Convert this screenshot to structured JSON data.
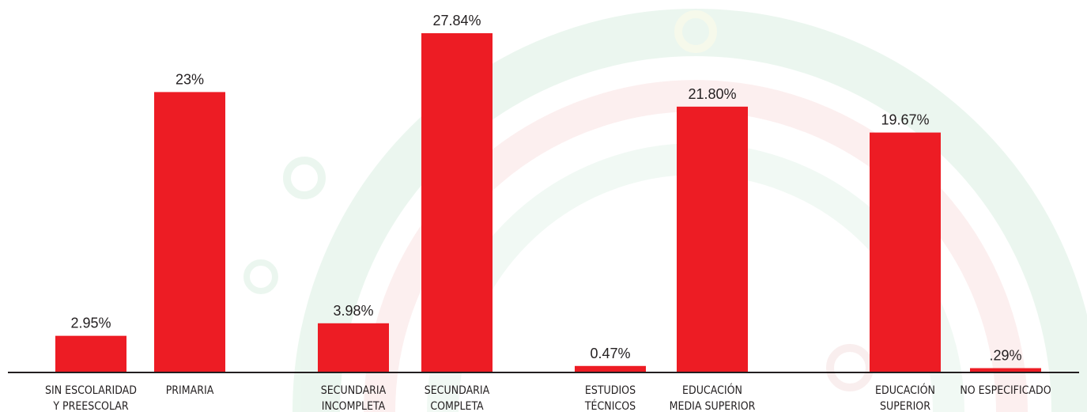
{
  "chart_data": {
    "type": "bar",
    "categories": [
      [
        "SIN ESCOLARIDAD",
        "Y PREESCOLAR"
      ],
      [
        "PRIMARIA"
      ],
      [
        "SECUNDARIA",
        "INCOMPLETA"
      ],
      [
        "SECUNDARIA",
        "COMPLETA"
      ],
      [
        "ESTUDIOS",
        "TÉCNICOS"
      ],
      [
        "EDUCACIÓN",
        "MEDIA SUPERIOR"
      ],
      [
        "EDUCACIÓN",
        "SUPERIOR"
      ],
      [
        "NO ESPECIFICADO"
      ]
    ],
    "values": [
      2.95,
      23,
      3.98,
      27.84,
      0.47,
      21.8,
      19.67,
      0.29
    ],
    "value_labels": [
      "2.95%",
      "23%",
      "3.98%",
      "27.84%",
      "0.47%",
      "21.80%",
      "19.67%",
      ".29%"
    ],
    "color": "#ed1c24"
  }
}
